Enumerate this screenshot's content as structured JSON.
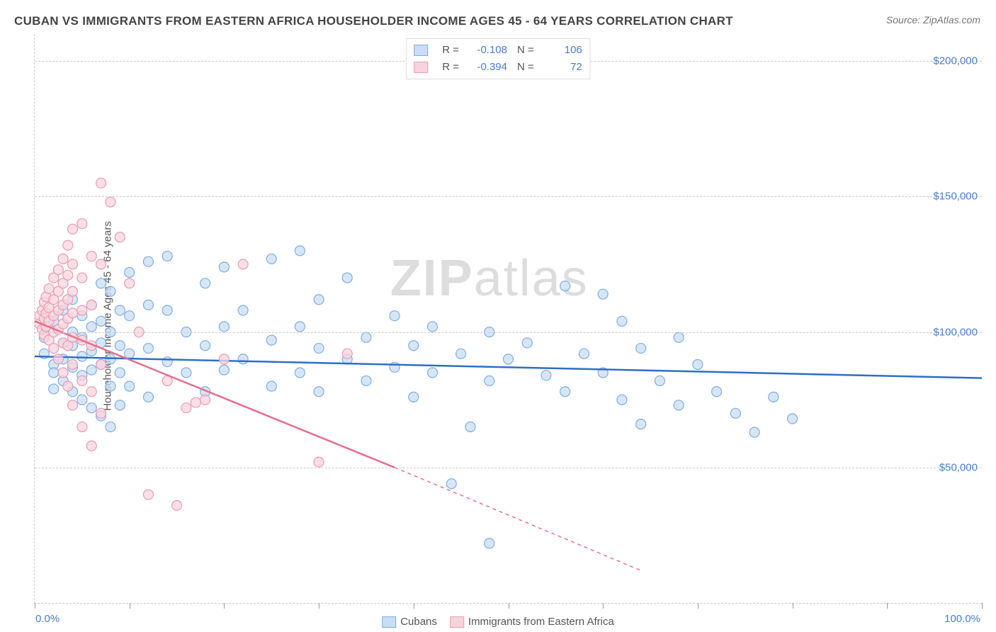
{
  "title": "CUBAN VS IMMIGRANTS FROM EASTERN AFRICA HOUSEHOLDER INCOME AGES 45 - 64 YEARS CORRELATION CHART",
  "source_label": "Source: ZipAtlas.com",
  "ylabel": "Householder Income Ages 45 - 64 years",
  "watermark_a": "ZIP",
  "watermark_b": "atlas",
  "chart": {
    "type": "scatter",
    "background_color": "#ffffff",
    "grid_color": "#cccccc",
    "text_color": "#555555",
    "value_color": "#4a7ec9",
    "xlim": [
      0,
      100
    ],
    "ylim": [
      0,
      210000
    ],
    "xticks": [
      0,
      10,
      20,
      30,
      40,
      50,
      60,
      70,
      80,
      90,
      100
    ],
    "yticks": [
      50000,
      100000,
      150000,
      200000
    ],
    "ytick_labels": [
      "$50,000",
      "$100,000",
      "$150,000",
      "$200,000"
    ],
    "x_start_label": "0.0%",
    "x_end_label": "100.0%",
    "marker_radius": 7,
    "series": [
      {
        "name": "Cubans",
        "color_fill": "#c9ddf4",
        "color_stroke": "#7daee5",
        "line_color": "#2e6fc4",
        "R": "-0.108",
        "N": "106",
        "trend": {
          "x1": 0,
          "y1": 91000,
          "x2": 100,
          "y2": 83000,
          "dash_after_x": 100
        },
        "points": [
          [
            1,
            98000
          ],
          [
            1,
            92000
          ],
          [
            2,
            104000
          ],
          [
            2,
            88000
          ],
          [
            2,
            85000
          ],
          [
            2,
            79000
          ],
          [
            3,
            108000
          ],
          [
            3,
            96000
          ],
          [
            3,
            90000
          ],
          [
            3,
            82000
          ],
          [
            4,
            112000
          ],
          [
            4,
            100000
          ],
          [
            4,
            95000
          ],
          [
            4,
            87000
          ],
          [
            4,
            78000
          ],
          [
            5,
            106000
          ],
          [
            5,
            98000
          ],
          [
            5,
            91000
          ],
          [
            5,
            84000
          ],
          [
            5,
            75000
          ],
          [
            6,
            110000
          ],
          [
            6,
            102000
          ],
          [
            6,
            93000
          ],
          [
            6,
            86000
          ],
          [
            6,
            72000
          ],
          [
            7,
            118000
          ],
          [
            7,
            104000
          ],
          [
            7,
            96000
          ],
          [
            7,
            88000
          ],
          [
            7,
            69000
          ],
          [
            8,
            115000
          ],
          [
            8,
            100000
          ],
          [
            8,
            90000
          ],
          [
            8,
            80000
          ],
          [
            8,
            65000
          ],
          [
            9,
            108000
          ],
          [
            9,
            95000
          ],
          [
            9,
            85000
          ],
          [
            9,
            73000
          ],
          [
            10,
            122000
          ],
          [
            10,
            106000
          ],
          [
            10,
            92000
          ],
          [
            10,
            80000
          ],
          [
            12,
            126000
          ],
          [
            12,
            110000
          ],
          [
            12,
            94000
          ],
          [
            12,
            76000
          ],
          [
            14,
            128000
          ],
          [
            14,
            108000
          ],
          [
            14,
            89000
          ],
          [
            16,
            100000
          ],
          [
            16,
            85000
          ],
          [
            18,
            118000
          ],
          [
            18,
            95000
          ],
          [
            18,
            78000
          ],
          [
            20,
            124000
          ],
          [
            20,
            102000
          ],
          [
            20,
            86000
          ],
          [
            22,
            108000
          ],
          [
            22,
            90000
          ],
          [
            25,
            127000
          ],
          [
            25,
            97000
          ],
          [
            25,
            80000
          ],
          [
            28,
            130000
          ],
          [
            28,
            102000
          ],
          [
            28,
            85000
          ],
          [
            30,
            112000
          ],
          [
            30,
            94000
          ],
          [
            30,
            78000
          ],
          [
            33,
            120000
          ],
          [
            33,
            90000
          ],
          [
            35,
            98000
          ],
          [
            35,
            82000
          ],
          [
            38,
            106000
          ],
          [
            38,
            87000
          ],
          [
            40,
            95000
          ],
          [
            40,
            76000
          ],
          [
            42,
            102000
          ],
          [
            42,
            85000
          ],
          [
            44,
            44000
          ],
          [
            45,
            92000
          ],
          [
            46,
            65000
          ],
          [
            48,
            100000
          ],
          [
            48,
            82000
          ],
          [
            48,
            22000
          ],
          [
            50,
            90000
          ],
          [
            52,
            96000
          ],
          [
            54,
            84000
          ],
          [
            56,
            117000
          ],
          [
            56,
            78000
          ],
          [
            58,
            92000
          ],
          [
            60,
            114000
          ],
          [
            60,
            85000
          ],
          [
            62,
            104000
          ],
          [
            62,
            75000
          ],
          [
            64,
            94000
          ],
          [
            64,
            66000
          ],
          [
            66,
            82000
          ],
          [
            68,
            98000
          ],
          [
            68,
            73000
          ],
          [
            70,
            88000
          ],
          [
            72,
            78000
          ],
          [
            74,
            70000
          ],
          [
            76,
            63000
          ],
          [
            78,
            76000
          ],
          [
            80,
            68000
          ]
        ]
      },
      {
        "name": "Immigrants from Eastern Africa",
        "color_fill": "#f7d4dd",
        "color_stroke": "#ed9ab0",
        "line_color": "#e56f8c",
        "R": "-0.394",
        "N": "72",
        "trend": {
          "x1": 0,
          "y1": 104000,
          "x2": 38,
          "y2": 50000,
          "dash_after_x": 38,
          "x3": 64,
          "y3": 12000
        },
        "points": [
          [
            0.5,
            106000
          ],
          [
            0.5,
            103000
          ],
          [
            0.8,
            108000
          ],
          [
            0.8,
            101000
          ],
          [
            1,
            111000
          ],
          [
            1,
            105000
          ],
          [
            1,
            99000
          ],
          [
            1.2,
            113000
          ],
          [
            1.2,
            107000
          ],
          [
            1.2,
            102000
          ],
          [
            1.5,
            116000
          ],
          [
            1.5,
            109000
          ],
          [
            1.5,
            104000
          ],
          [
            1.5,
            97000
          ],
          [
            2,
            120000
          ],
          [
            2,
            112000
          ],
          [
            2,
            106000
          ],
          [
            2,
            100000
          ],
          [
            2,
            94000
          ],
          [
            2.5,
            123000
          ],
          [
            2.5,
            115000
          ],
          [
            2.5,
            108000
          ],
          [
            2.5,
            101000
          ],
          [
            2.5,
            90000
          ],
          [
            3,
            127000
          ],
          [
            3,
            118000
          ],
          [
            3,
            110000
          ],
          [
            3,
            103000
          ],
          [
            3,
            96000
          ],
          [
            3,
            85000
          ],
          [
            3.5,
            132000
          ],
          [
            3.5,
            121000
          ],
          [
            3.5,
            112000
          ],
          [
            3.5,
            105000
          ],
          [
            3.5,
            95000
          ],
          [
            3.5,
            80000
          ],
          [
            4,
            138000
          ],
          [
            4,
            125000
          ],
          [
            4,
            115000
          ],
          [
            4,
            107000
          ],
          [
            4,
            98000
          ],
          [
            4,
            88000
          ],
          [
            4,
            73000
          ],
          [
            5,
            140000
          ],
          [
            5,
            120000
          ],
          [
            5,
            108000
          ],
          [
            5,
            97000
          ],
          [
            5,
            82000
          ],
          [
            5,
            65000
          ],
          [
            6,
            128000
          ],
          [
            6,
            110000
          ],
          [
            6,
            95000
          ],
          [
            6,
            78000
          ],
          [
            6,
            58000
          ],
          [
            7,
            155000
          ],
          [
            7,
            125000
          ],
          [
            7,
            88000
          ],
          [
            7,
            70000
          ],
          [
            8,
            148000
          ],
          [
            9,
            135000
          ],
          [
            10,
            118000
          ],
          [
            11,
            100000
          ],
          [
            12,
            40000
          ],
          [
            14,
            82000
          ],
          [
            15,
            36000
          ],
          [
            16,
            72000
          ],
          [
            17,
            74000
          ],
          [
            18,
            75000
          ],
          [
            20,
            90000
          ],
          [
            22,
            125000
          ],
          [
            30,
            52000
          ],
          [
            33,
            92000
          ]
        ]
      }
    ]
  }
}
